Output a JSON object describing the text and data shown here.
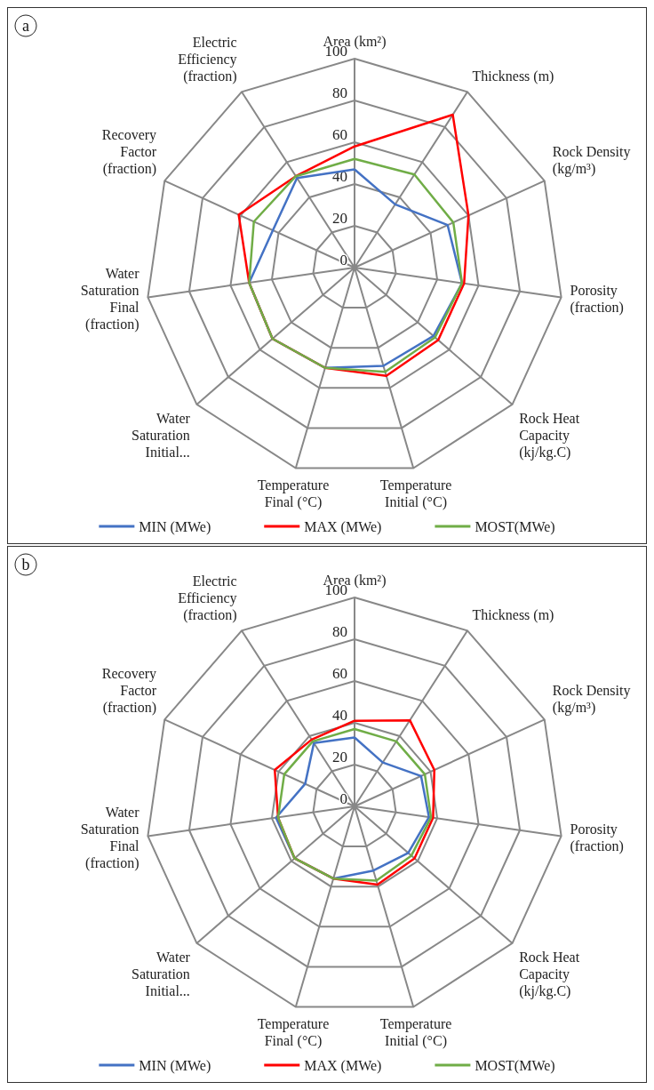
{
  "chart_data": [
    {
      "type": "radar",
      "title": "a",
      "categories": [
        "Area (km²)",
        "Thickness (m)",
        "Rock Density (kg/m³)",
        "Porosity (fraction)",
        "Rock Heat Capacity (kj/kg.C)",
        "Temperature Initial (°C)",
        "Temperature Final (°C)",
        "Water Saturation Initial...",
        "Water Saturation Final (fraction)",
        "Recovery Factor (fraction)",
        "Electric Efficiency (fraction)"
      ],
      "series": [
        {
          "name": "MIN (MWe)",
          "color": "#4472c4",
          "values": [
            47,
            36,
            49,
            52,
            50,
            49,
            50,
            52,
            51,
            43,
            51
          ]
        },
        {
          "name": "MAX (MWe)",
          "color": "#ff0000",
          "values": [
            58,
            87,
            60,
            53,
            53,
            54,
            50,
            52,
            51,
            61,
            52
          ]
        },
        {
          "name": "MOST(MWe)",
          "color": "#70ad47",
          "values": [
            52,
            53,
            52,
            52,
            51,
            52,
            50,
            52,
            51,
            53,
            52
          ]
        }
      ],
      "ylim": [
        0,
        100
      ],
      "yticks": [
        0,
        20,
        40,
        60,
        80,
        100
      ],
      "legend": "bottom"
    },
    {
      "type": "radar",
      "title": "b",
      "categories": [
        "Area (km²)",
        "Thickness (m)",
        "Rock Density (kg/m³)",
        "Porosity (fraction)",
        "Rock Heat Capacity (kj/kg.C)",
        "Temperature Initial (°C)",
        "Temperature Final (°C)",
        "Water Saturation Initial...",
        "Water Saturation Final (fraction)",
        "Recovery Factor (fraction)",
        "Electric Efficiency (fraction)"
      ],
      "series": [
        {
          "name": "MIN (MWe)",
          "color": "#4472c4",
          "values": [
            33,
            25,
            35,
            36,
            34,
            32,
            36,
            38,
            38,
            26,
            36
          ]
        },
        {
          "name": "MAX (MWe)",
          "color": "#ff0000",
          "values": [
            41,
            49,
            42,
            38,
            38,
            39,
            36,
            38,
            37,
            42,
            38
          ]
        },
        {
          "name": "MOST(MWe)",
          "color": "#70ad47",
          "values": [
            37,
            37,
            37,
            37,
            36,
            37,
            36,
            38,
            37,
            37,
            37
          ]
        }
      ],
      "ylim": [
        0,
        100
      ],
      "yticks": [
        0,
        20,
        40,
        60,
        80,
        100
      ],
      "legend": "bottom"
    }
  ]
}
